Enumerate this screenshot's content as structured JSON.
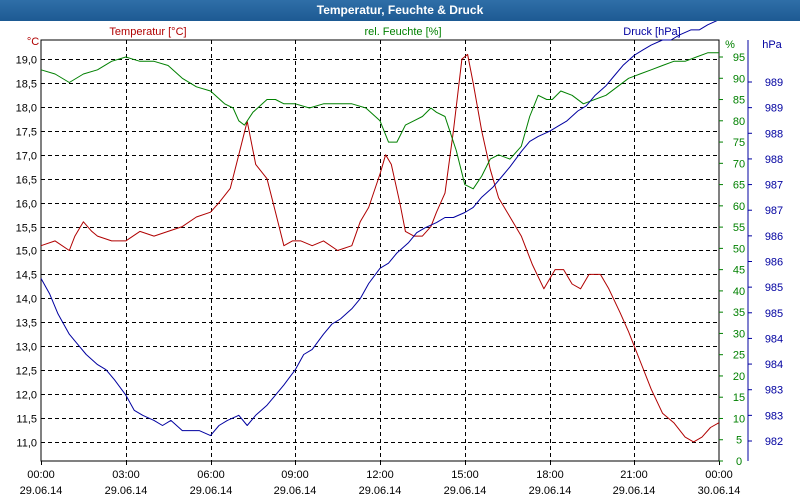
{
  "window": {
    "title": "Temperatur, Feuchte & Druck"
  },
  "chart_data": {
    "type": "line",
    "title": "Temperatur, Feuchte & Druck",
    "x_ticks": [
      {
        "time": "00:00",
        "date": "29.06.14"
      },
      {
        "time": "03:00",
        "date": "29.06.14"
      },
      {
        "time": "06:00",
        "date": "29.06.14"
      },
      {
        "time": "09:00",
        "date": "29.06.14"
      },
      {
        "time": "12:00",
        "date": "29.06.14"
      },
      {
        "time": "15:00",
        "date": "29.06.14"
      },
      {
        "time": "18:00",
        "date": "29.06.14"
      },
      {
        "time": "21:00",
        "date": "29.06.14"
      },
      {
        "time": "00:00",
        "date": "30.06.14"
      }
    ],
    "xlim_hours": [
      0,
      24
    ],
    "axes": {
      "temperature": {
        "label": "Temperatur [°C]",
        "unit": "°C",
        "color": "#b00000",
        "ylim": [
          10.6,
          19.4
        ],
        "ticks": [
          "19,0",
          "18,5",
          "18,0",
          "17,5",
          "17,0",
          "16,5",
          "16,0",
          "15,5",
          "15,0",
          "14,5",
          "14,0",
          "13,5",
          "13,0",
          "12,5",
          "12,0",
          "11,5",
          "11,0"
        ]
      },
      "humidity": {
        "label": "rel. Feuchte [%]",
        "unit": "%",
        "color": "#008000",
        "ylim": [
          0,
          99
        ],
        "ticks": [
          "95",
          "90",
          "85",
          "80",
          "75",
          "70",
          "65",
          "60",
          "55",
          "50",
          "45",
          "40",
          "35",
          "30",
          "25",
          "20",
          "15",
          "10",
          "5",
          "0"
        ]
      },
      "pressure": {
        "label": "Druck [hPa]",
        "unit": "hPa",
        "color": "#0000a0",
        "ylim": [
          981.6,
          989.9
        ],
        "ticks": [
          "989",
          "989",
          "988",
          "988",
          "987",
          "987",
          "986",
          "986",
          "985",
          "985",
          "984",
          "984",
          "983",
          "983",
          "982"
        ]
      }
    },
    "series": [
      {
        "name": "Temperatur [°C]",
        "axis": "temperature",
        "color": "#b00000",
        "x": [
          0,
          0.5,
          1.0,
          1.2,
          1.5,
          1.8,
          2.0,
          2.5,
          3.0,
          3.5,
          4.0,
          4.5,
          5.0,
          5.5,
          6.0,
          6.3,
          6.7,
          7.0,
          7.3,
          7.6,
          8.0,
          8.3,
          8.6,
          8.9,
          9.2,
          9.6,
          10.0,
          10.5,
          11.0,
          11.3,
          11.6,
          12.0,
          12.2,
          12.4,
          12.7,
          12.9,
          13.2,
          13.5,
          13.8,
          14.0,
          14.3,
          14.6,
          14.9,
          15.1,
          15.3,
          15.6,
          15.9,
          16.2,
          16.6,
          17.0,
          17.4,
          17.8,
          18.2,
          18.5,
          18.8,
          19.1,
          19.4,
          19.8,
          20.1,
          20.5,
          20.8,
          21.2,
          21.6,
          22.0,
          22.4,
          22.8,
          23.1,
          23.4,
          23.7,
          24.0
        ],
        "values": [
          15.1,
          15.2,
          15.0,
          15.3,
          15.6,
          15.4,
          15.3,
          15.2,
          15.2,
          15.4,
          15.3,
          15.4,
          15.5,
          15.7,
          15.8,
          16.0,
          16.3,
          17.0,
          17.7,
          16.8,
          16.5,
          15.8,
          15.1,
          15.2,
          15.2,
          15.1,
          15.2,
          15.0,
          15.1,
          15.6,
          15.9,
          16.6,
          17.0,
          16.8,
          16.0,
          15.4,
          15.3,
          15.3,
          15.5,
          15.8,
          16.2,
          17.5,
          19.0,
          19.1,
          18.5,
          17.5,
          16.7,
          16.1,
          15.7,
          15.3,
          14.7,
          14.2,
          14.6,
          14.6,
          14.3,
          14.2,
          14.5,
          14.5,
          14.2,
          13.7,
          13.3,
          12.7,
          12.1,
          11.6,
          11.4,
          11.1,
          11.0,
          11.1,
          11.3,
          11.4
        ]
      },
      {
        "name": "rel. Feuchte [%]",
        "axis": "humidity",
        "color": "#008000",
        "x": [
          0,
          0.5,
          1.0,
          1.5,
          2.0,
          2.5,
          3.0,
          3.5,
          4.0,
          4.5,
          5.0,
          5.5,
          6.0,
          6.5,
          6.8,
          7.0,
          7.2,
          7.5,
          8.0,
          8.3,
          8.6,
          9.0,
          9.5,
          10.0,
          10.5,
          11.0,
          11.5,
          12.0,
          12.3,
          12.6,
          12.9,
          13.2,
          13.5,
          13.8,
          14.0,
          14.3,
          14.7,
          15.0,
          15.3,
          15.6,
          15.9,
          16.2,
          16.6,
          17.0,
          17.3,
          17.6,
          17.9,
          18.1,
          18.4,
          18.8,
          19.2,
          19.6,
          20.0,
          20.4,
          20.8,
          21.2,
          21.6,
          22.0,
          22.4,
          22.8,
          23.2,
          23.6,
          24.0
        ],
        "values": [
          92,
          91,
          89,
          91,
          92,
          94,
          95,
          94,
          94,
          93,
          90,
          88,
          87,
          84,
          83,
          80,
          79,
          82,
          85,
          85,
          84,
          84,
          83,
          84,
          84,
          84,
          83,
          80,
          75,
          75,
          79,
          80,
          81,
          83,
          82,
          81,
          73,
          65,
          64,
          67,
          71,
          72,
          71,
          74,
          81,
          86,
          85,
          85,
          87,
          86,
          84,
          85,
          86,
          88,
          90,
          91,
          92,
          93,
          94,
          94,
          95,
          96,
          96
        ]
      },
      {
        "name": "Druck [hPa]",
        "axis": "pressure",
        "color": "#0000a0",
        "x": [
          0,
          0.3,
          0.6,
          1.0,
          1.3,
          1.6,
          2.0,
          2.3,
          2.6,
          3.0,
          3.3,
          3.6,
          4.0,
          4.3,
          4.6,
          5.0,
          5.3,
          5.6,
          6.0,
          6.3,
          6.6,
          7.0,
          7.3,
          7.6,
          8.0,
          8.3,
          8.6,
          9.0,
          9.3,
          9.6,
          10.0,
          10.3,
          10.6,
          11.0,
          11.3,
          11.6,
          12.0,
          12.3,
          12.6,
          13.0,
          13.3,
          13.6,
          14.0,
          14.3,
          14.6,
          15.0,
          15.3,
          15.6,
          16.0,
          16.3,
          16.6,
          17.0,
          17.3,
          17.6,
          18.0,
          18.3,
          18.6,
          19.0,
          19.3,
          19.6,
          20.0,
          20.3,
          20.6,
          21.0,
          21.3,
          21.6,
          22.0,
          22.3,
          22.6,
          23.0,
          23.3,
          23.6,
          24.0
        ],
        "values": [
          985.2,
          984.9,
          984.5,
          984.1,
          983.9,
          983.7,
          983.5,
          983.4,
          983.2,
          982.9,
          982.6,
          982.5,
          982.4,
          982.3,
          982.4,
          982.2,
          982.2,
          982.2,
          982.1,
          982.3,
          982.4,
          982.5,
          982.3,
          982.5,
          982.7,
          982.9,
          983.1,
          983.4,
          983.7,
          983.8,
          984.1,
          984.3,
          984.4,
          984.6,
          984.8,
          985.1,
          985.4,
          985.5,
          985.7,
          985.9,
          986.1,
          986.2,
          986.3,
          986.4,
          986.4,
          986.5,
          986.6,
          986.8,
          987.0,
          987.2,
          987.4,
          987.7,
          987.9,
          988.0,
          988.1,
          988.2,
          988.3,
          988.5,
          988.6,
          988.8,
          989.0,
          989.2,
          989.4,
          989.6,
          989.7,
          989.8,
          989.9,
          989.9,
          990.0,
          990.1,
          990.1,
          990.2,
          990.3
        ]
      }
    ]
  }
}
